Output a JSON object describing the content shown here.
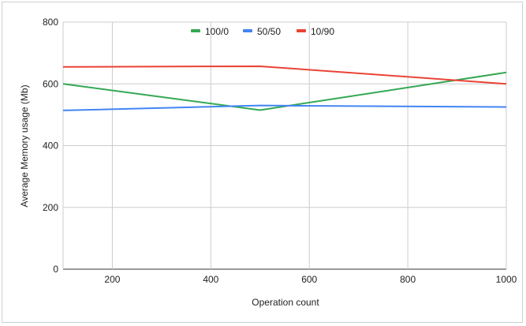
{
  "chart_data": {
    "type": "line",
    "title": "",
    "xlabel": "Operation count",
    "ylabel": "Average Memory usage (Mb)",
    "xlim": [
      100,
      1000
    ],
    "ylim": [
      0,
      800
    ],
    "x_ticks": [
      200,
      400,
      600,
      800,
      1000
    ],
    "y_ticks": [
      0,
      200,
      400,
      600,
      800
    ],
    "grid": true,
    "legend_position": "top",
    "series": [
      {
        "name": "100/0",
        "color": "#34a853",
        "x": [
          100,
          500,
          1000
        ],
        "y": [
          600,
          515,
          637
        ]
      },
      {
        "name": "50/50",
        "color": "#4285f4",
        "x": [
          100,
          500,
          1000
        ],
        "y": [
          514,
          530,
          525
        ]
      },
      {
        "name": "10/90",
        "color": "#ea4335",
        "x": [
          100,
          500,
          1000
        ],
        "y": [
          655,
          657,
          600
        ]
      }
    ]
  }
}
